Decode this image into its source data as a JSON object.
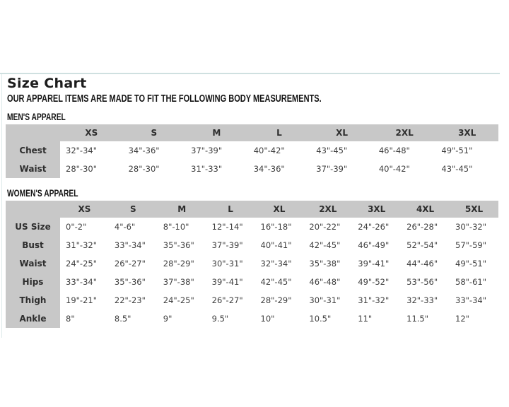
{
  "page": {
    "title": "Size Chart",
    "subtitle": "OUR APPAREL ITEMS ARE MADE TO FIT THE FOLLOWING BODY MEASUREMENTS."
  },
  "colors": {
    "table_header_bg": "#c8c8c8",
    "row_label_bg": "#c8c8c8",
    "panel_border": "#cfe0e0",
    "value_text": "#3e3e3e",
    "heading_text": "#141414"
  },
  "mens": {
    "heading": "MEN'S APPAREL",
    "columns": [
      "XS",
      "S",
      "M",
      "L",
      "XL",
      "2XL",
      "3XL"
    ],
    "rows": [
      {
        "label": "Chest",
        "values": [
          "32\"-34\"",
          "34\"-36\"",
          "37\"-39\"",
          "40\"-42\"",
          "43\"-45\"",
          "46\"-48\"",
          "49\"-51\""
        ]
      },
      {
        "label": "Waist",
        "values": [
          "28\"-30\"",
          "28\"-30\"",
          "31\"-33\"",
          "34\"-36\"",
          "37\"-39\"",
          "40\"-42\"",
          "43\"-45\""
        ]
      }
    ]
  },
  "womens": {
    "heading": "WOMEN'S APPAREL",
    "columns": [
      "XS",
      "S",
      "M",
      "L",
      "XL",
      "2XL",
      "3XL",
      "4XL",
      "5XL"
    ],
    "rows": [
      {
        "label": "US Size",
        "values": [
          "0\"-2\"",
          "4\"-6\"",
          "8\"-10\"",
          "12\"-14\"",
          "16\"-18\"",
          "20\"-22\"",
          "24\"-26\"",
          "26\"-28\"",
          "30\"-32\""
        ]
      },
      {
        "label": "Bust",
        "values": [
          "31\"-32\"",
          "33\"-34\"",
          "35\"-36\"",
          "37\"-39\"",
          "40\"-41\"",
          "42\"-45\"",
          "46\"-49\"",
          "52\"-54\"",
          "57\"-59\""
        ]
      },
      {
        "label": "Waist",
        "values": [
          "24\"-25\"",
          "26\"-27\"",
          "28\"-29\"",
          "30\"-31\"",
          "32\"-34\"",
          "35\"-38\"",
          "39\"-41\"",
          "44\"-46\"",
          "49\"-51\""
        ]
      },
      {
        "label": "Hips",
        "values": [
          "33\"-34\"",
          "35\"-36\"",
          "37\"-38\"",
          "39\"-41\"",
          "42\"-45\"",
          "46\"-48\"",
          "49\"-52\"",
          "53\"-56\"",
          "58\"-61\""
        ]
      },
      {
        "label": "Thigh",
        "values": [
          "19\"-21\"",
          "22\"-23\"",
          "24\"-25\"",
          "26\"-27\"",
          "28\"-29\"",
          "30\"-31\"",
          "31\"-32\"",
          "32\"-33\"",
          "33\"-34\""
        ]
      },
      {
        "label": "Ankle",
        "values": [
          "8\"",
          "8.5\"",
          "9\"",
          "9.5\"",
          "10\"",
          "10.5\"",
          "11\"",
          "11.5\"",
          "12\""
        ]
      }
    ]
  }
}
